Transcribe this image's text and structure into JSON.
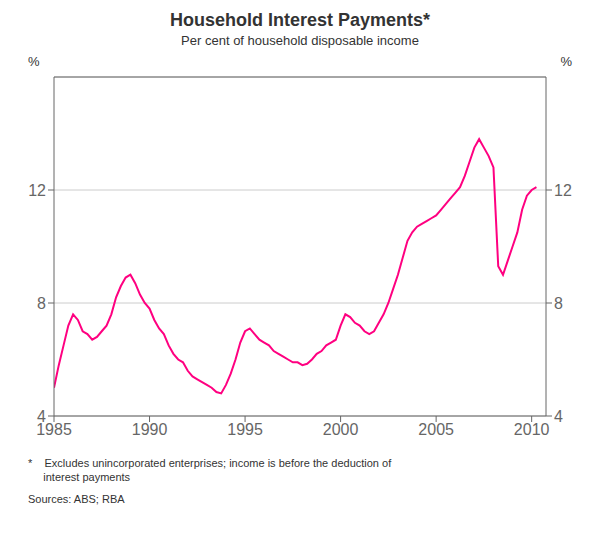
{
  "chart_data": {
    "type": "line",
    "title": "Household Interest Payments*",
    "subtitle": "Per cent of household disposable income",
    "ylabel": "%",
    "y2label": "%",
    "footnote": "*    Excludes unincorporated enterprises; income is before the deduction of\n     interest payments",
    "source": "Sources: ABS; RBA",
    "color": "#FF0080",
    "grid": true,
    "xlim": [
      1985,
      2010.75
    ],
    "ylim": [
      4,
      16
    ],
    "yticks": [
      4,
      8,
      12
    ],
    "y2lim": [
      4,
      16
    ],
    "y2ticks": [
      4,
      8,
      12
    ],
    "xticks": [
      1985,
      1990,
      1995,
      2000,
      2005,
      2010
    ],
    "x": [
      1985.0,
      1985.25,
      1985.5,
      1985.75,
      1986.0,
      1986.25,
      1986.5,
      1986.75,
      1987.0,
      1987.25,
      1987.5,
      1987.75,
      1988.0,
      1988.25,
      1988.5,
      1988.75,
      1989.0,
      1989.25,
      1989.5,
      1989.75,
      1990.0,
      1990.25,
      1990.5,
      1990.75,
      1991.0,
      1991.25,
      1991.5,
      1991.75,
      1992.0,
      1992.25,
      1992.5,
      1992.75,
      1993.0,
      1993.25,
      1993.5,
      1993.75,
      1994.0,
      1994.25,
      1994.5,
      1994.75,
      1995.0,
      1995.25,
      1995.5,
      1995.75,
      1996.0,
      1996.25,
      1996.5,
      1996.75,
      1997.0,
      1997.25,
      1997.5,
      1997.75,
      1998.0,
      1998.25,
      1998.5,
      1998.75,
      1999.0,
      1999.25,
      1999.5,
      1999.75,
      2000.0,
      2000.25,
      2000.5,
      2000.75,
      2001.0,
      2001.25,
      2001.5,
      2001.75,
      2002.0,
      2002.25,
      2002.5,
      2002.75,
      2003.0,
      2003.25,
      2003.5,
      2003.75,
      2004.0,
      2004.25,
      2004.5,
      2004.75,
      2005.0,
      2005.25,
      2005.5,
      2005.75,
      2006.0,
      2006.25,
      2006.5,
      2006.75,
      2007.0,
      2007.25,
      2007.5,
      2007.75,
      2008.0,
      2008.25,
      2008.5,
      2008.75,
      2009.0,
      2009.25,
      2009.5,
      2009.75,
      2010.0,
      2010.25
    ],
    "values": [
      5.0,
      5.8,
      6.5,
      7.2,
      7.6,
      7.4,
      7.0,
      6.9,
      6.7,
      6.8,
      7.0,
      7.2,
      7.6,
      8.2,
      8.6,
      8.9,
      9.0,
      8.7,
      8.3,
      8.0,
      7.8,
      7.4,
      7.1,
      6.9,
      6.5,
      6.2,
      6.0,
      5.9,
      5.6,
      5.4,
      5.3,
      5.2,
      5.1,
      5.0,
      4.85,
      4.8,
      5.1,
      5.5,
      6.0,
      6.6,
      7.0,
      7.1,
      6.9,
      6.7,
      6.6,
      6.5,
      6.3,
      6.2,
      6.1,
      6.0,
      5.9,
      5.9,
      5.8,
      5.85,
      6.0,
      6.2,
      6.3,
      6.5,
      6.6,
      6.7,
      7.2,
      7.6,
      7.5,
      7.3,
      7.2,
      7.0,
      6.9,
      7.0,
      7.3,
      7.6,
      8.0,
      8.5,
      9.0,
      9.6,
      10.2,
      10.5,
      10.7,
      10.8,
      10.9,
      11.0,
      11.1,
      11.3,
      11.5,
      11.7,
      11.9,
      12.1,
      12.5,
      13.0,
      13.5,
      13.8,
      13.5,
      13.2,
      12.8,
      9.3,
      9.0,
      9.5,
      10.0,
      10.5,
      11.3,
      11.8,
      12.0,
      12.1
    ]
  }
}
